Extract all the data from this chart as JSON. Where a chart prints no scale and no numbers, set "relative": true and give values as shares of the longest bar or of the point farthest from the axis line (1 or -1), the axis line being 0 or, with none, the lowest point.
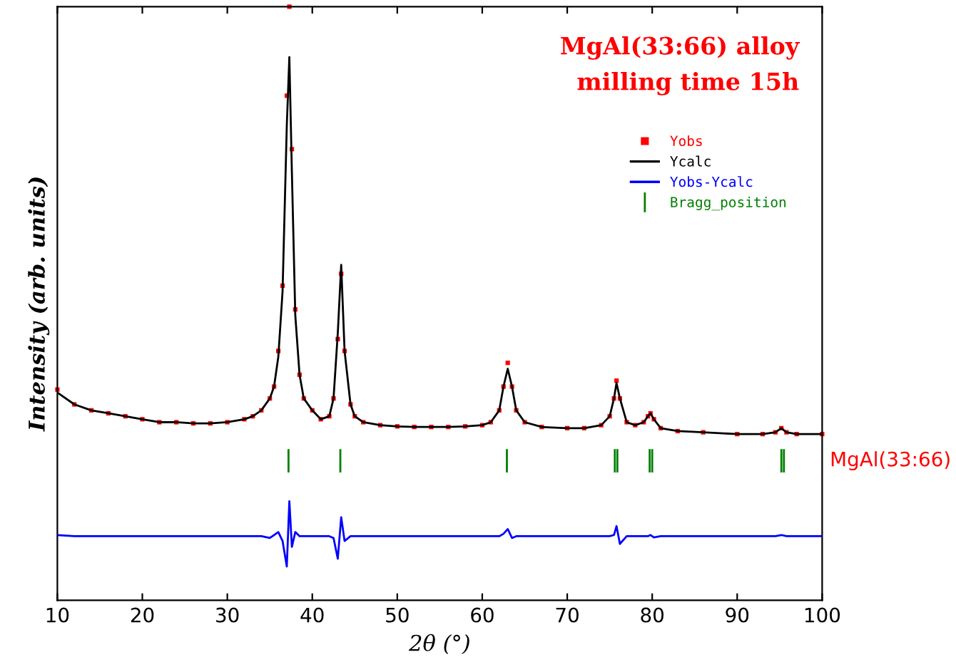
{
  "chart_data": {
    "type": "line",
    "relative": true,
    "xlabel": "2θ (°)",
    "ylabel": "Intensity (arb. units)",
    "xlim": [
      10,
      100
    ],
    "xticks": [
      10,
      20,
      30,
      40,
      50,
      60,
      70,
      80,
      90,
      100
    ],
    "grid": false,
    "legend": "right",
    "annotations": [
      "MgAl(33:66) alloy",
      "milling time 15h",
      "MgAl(33:66)"
    ],
    "x": [
      10,
      12,
      14,
      16,
      18,
      20,
      22,
      24,
      26,
      28,
      30,
      32,
      33,
      34,
      35,
      35.5,
      36,
      36.5,
      37,
      37.3,
      37.6,
      38,
      38.5,
      39,
      40,
      41,
      42,
      42.5,
      43,
      43.4,
      43.8,
      44.5,
      45,
      46,
      48,
      50,
      52,
      54,
      56,
      58,
      60,
      61,
      62,
      62.5,
      63,
      63.5,
      64,
      65,
      67,
      70,
      72,
      74,
      75,
      75.5,
      75.8,
      76.2,
      77,
      78,
      79,
      79.5,
      79.8,
      80.2,
      81,
      83,
      86,
      90,
      93,
      94.5,
      95.2,
      95.8,
      97,
      100
    ],
    "series": [
      {
        "name": "Yobs",
        "type": "scatter",
        "marker": "square",
        "color": "#ff0000",
        "values": [
          0.355,
          0.33,
          0.32,
          0.315,
          0.31,
          0.305,
          0.3,
          0.3,
          0.298,
          0.298,
          0.3,
          0.305,
          0.31,
          0.32,
          0.34,
          0.36,
          0.42,
          0.53,
          0.85,
          1.0,
          0.76,
          0.49,
          0.38,
          0.34,
          0.32,
          0.305,
          0.31,
          0.34,
          0.44,
          0.55,
          0.42,
          0.33,
          0.31,
          0.3,
          0.295,
          0.293,
          0.292,
          0.292,
          0.292,
          0.293,
          0.295,
          0.3,
          0.32,
          0.36,
          0.4,
          0.36,
          0.32,
          0.3,
          0.292,
          0.29,
          0.29,
          0.295,
          0.31,
          0.34,
          0.37,
          0.34,
          0.3,
          0.295,
          0.3,
          0.31,
          0.315,
          0.305,
          0.29,
          0.285,
          0.283,
          0.28,
          0.28,
          0.283,
          0.29,
          0.283,
          0.28,
          0.28
        ]
      },
      {
        "name": "Ycalc",
        "color": "#000000",
        "values": [
          0.35,
          0.33,
          0.32,
          0.315,
          0.31,
          0.305,
          0.3,
          0.3,
          0.298,
          0.298,
          0.3,
          0.305,
          0.31,
          0.32,
          0.34,
          0.36,
          0.41,
          0.52,
          0.8,
          0.915,
          0.72,
          0.48,
          0.38,
          0.34,
          0.32,
          0.305,
          0.31,
          0.34,
          0.45,
          0.565,
          0.42,
          0.33,
          0.31,
          0.3,
          0.295,
          0.293,
          0.292,
          0.292,
          0.292,
          0.293,
          0.295,
          0.3,
          0.32,
          0.36,
          0.39,
          0.36,
          0.32,
          0.3,
          0.292,
          0.29,
          0.29,
          0.295,
          0.31,
          0.34,
          0.366,
          0.34,
          0.3,
          0.295,
          0.3,
          0.31,
          0.315,
          0.305,
          0.29,
          0.285,
          0.283,
          0.28,
          0.28,
          0.283,
          0.29,
          0.283,
          0.28,
          0.28
        ]
      },
      {
        "name": "Yobs-Ycalc",
        "color": "#0000ff",
        "values": [
          0.11,
          0.108,
          0.108,
          0.108,
          0.108,
          0.108,
          0.108,
          0.108,
          0.108,
          0.108,
          0.108,
          0.108,
          0.108,
          0.108,
          0.105,
          0.11,
          0.115,
          0.1,
          0.057,
          0.167,
          0.09,
          0.115,
          0.108,
          0.108,
          0.108,
          0.108,
          0.108,
          0.105,
          0.07,
          0.14,
          0.1,
          0.108,
          0.108,
          0.108,
          0.108,
          0.108,
          0.108,
          0.108,
          0.108,
          0.108,
          0.108,
          0.108,
          0.108,
          0.112,
          0.12,
          0.105,
          0.108,
          0.108,
          0.108,
          0.108,
          0.108,
          0.108,
          0.108,
          0.11,
          0.125,
          0.095,
          0.108,
          0.108,
          0.108,
          0.108,
          0.11,
          0.106,
          0.108,
          0.108,
          0.108,
          0.108,
          0.108,
          0.108,
          0.11,
          0.108,
          0.108,
          0.108
        ]
      },
      {
        "name": "Bragg_position",
        "color": "#008000",
        "x": [
          37.2,
          37.2,
          null,
          43.3,
          43.3,
          null,
          62.9,
          62.9,
          null,
          75.6,
          75.6,
          null,
          75.9,
          75.9,
          null,
          79.7,
          79.7,
          null,
          80.0,
          80.0,
          null,
          95.2,
          95.2,
          null,
          95.5,
          95.5
        ],
        "values": [
          0.217,
          0.253,
          null,
          0.217,
          0.253,
          null,
          0.217,
          0.253,
          null,
          0.217,
          0.253,
          null,
          0.217,
          0.253,
          null,
          0.217,
          0.253,
          null,
          0.217,
          0.253,
          null,
          0.217,
          0.253,
          null,
          0.217,
          0.253
        ]
      }
    ]
  }
}
